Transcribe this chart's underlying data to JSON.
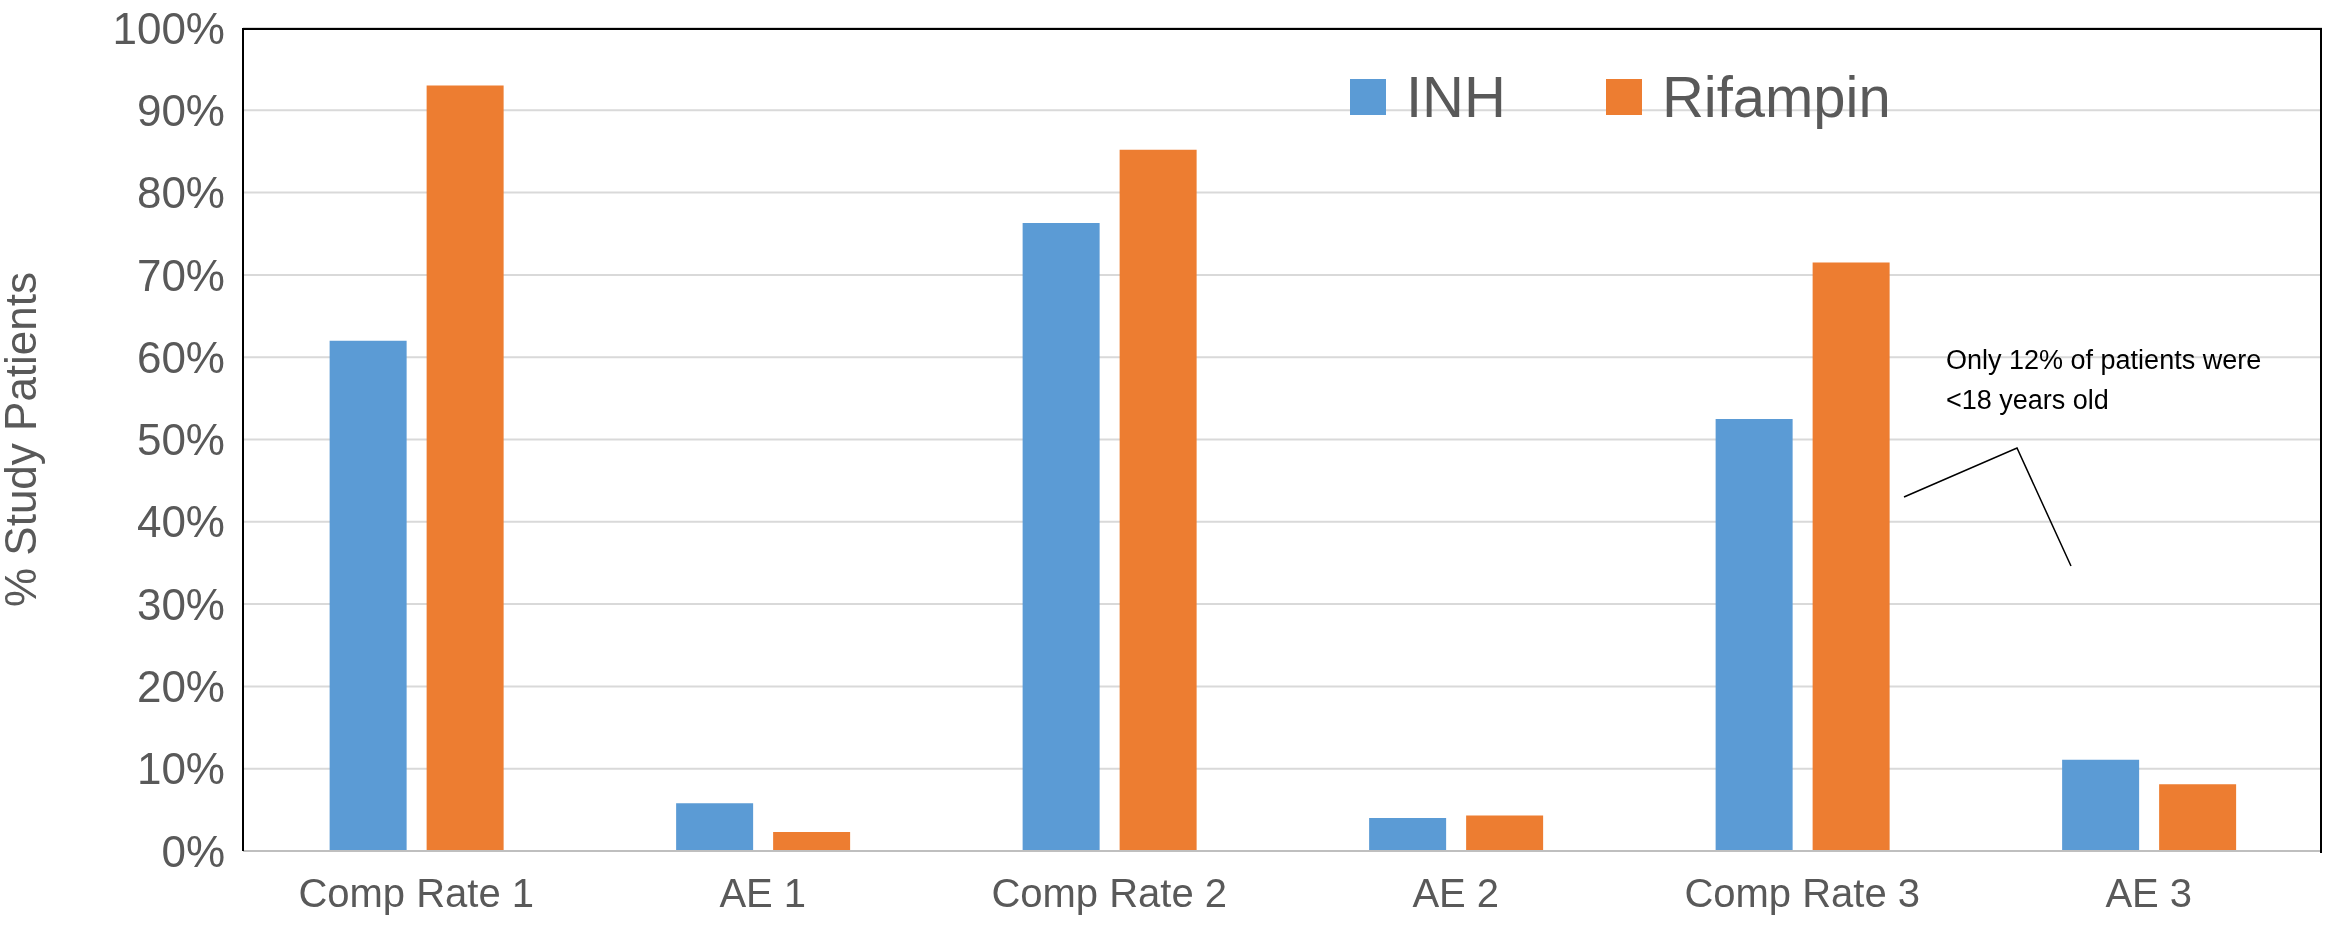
{
  "chart_data": {
    "type": "bar",
    "ylabel": "% Study Patients",
    "categories": [
      "Comp Rate 1",
      "AE 1",
      "Comp Rate 2",
      "AE 2",
      "Comp Rate 3",
      "AE 3"
    ],
    "series": [
      {
        "name": "INH",
        "color": "#5b9bd5",
        "values": [
          62,
          5.8,
          76.3,
          4.0,
          52.5,
          11.1
        ]
      },
      {
        "name": "Rifampin",
        "color": "#ed7d31",
        "values": [
          93,
          2.3,
          85.2,
          4.3,
          71.5,
          8.1
        ]
      }
    ],
    "ylim": [
      0,
      100
    ],
    "yticks": [
      {
        "value": 0,
        "label": "0%"
      },
      {
        "value": 10,
        "label": "10%"
      },
      {
        "value": 20,
        "label": "20%"
      },
      {
        "value": 30,
        "label": "30%"
      },
      {
        "value": 40,
        "label": "40%"
      },
      {
        "value": 50,
        "label": "50%"
      },
      {
        "value": 60,
        "label": "60%"
      },
      {
        "value": 70,
        "label": "70%"
      },
      {
        "value": 80,
        "label": "80%"
      },
      {
        "value": 90,
        "label": "90%"
      },
      {
        "value": 100,
        "label": "100%"
      }
    ],
    "grid": "y",
    "legend": "top",
    "annotations": [
      "Only 12% of patients were <18 years old"
    ]
  }
}
